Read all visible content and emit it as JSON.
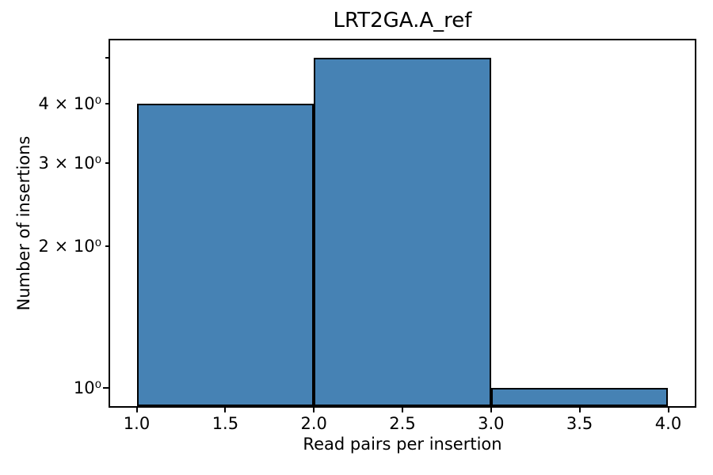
{
  "chart_data": {
    "type": "bar",
    "subtype": "histogram",
    "title": "LRT2GA.A_ref",
    "xlabel": "Read pairs per insertion",
    "ylabel": "Number of insertions",
    "bin_edges": [
      1.0,
      2.0,
      3.0,
      4.0
    ],
    "counts": [
      4,
      5,
      1
    ],
    "bar_fill_color": "#4682b4",
    "bar_edge_color": "#000000",
    "x_scale": "linear",
    "y_scale": "log",
    "xlim": [
      0.85,
      4.15
    ],
    "ylim": [
      0.915,
      5.45
    ],
    "grid": false,
    "legend": null,
    "x_ticks": [
      {
        "value": 1.0,
        "label": "1.0"
      },
      {
        "value": 1.5,
        "label": "1.5"
      },
      {
        "value": 2.0,
        "label": "2.0"
      },
      {
        "value": 2.5,
        "label": "2.5"
      },
      {
        "value": 3.0,
        "label": "3.0"
      },
      {
        "value": 3.5,
        "label": "3.5"
      },
      {
        "value": 4.0,
        "label": "4.0"
      }
    ],
    "y_ticks": [
      {
        "value": 1,
        "label": "10⁰",
        "major": true
      },
      {
        "value": 2,
        "label": "2 × 10⁰",
        "major": false
      },
      {
        "value": 3,
        "label": "3 × 10⁰",
        "major": false
      },
      {
        "value": 4,
        "label": "4 × 10⁰",
        "major": false
      }
    ],
    "y_minor_unlabeled_ticks": [
      5
    ]
  }
}
